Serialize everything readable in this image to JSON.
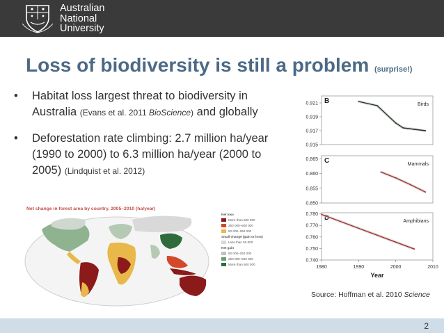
{
  "header": {
    "university_name_lines": [
      "Australian",
      "National",
      "University"
    ]
  },
  "slide": {
    "title": "Loss of biodiversity is still a problem",
    "title_aside": "(surprise!)",
    "bullets": [
      {
        "text": "Habitat loss largest threat to biodiversity in Australia",
        "cite_pre": "(Evans et al. 2011 ",
        "cite_journal": "BioScience",
        "cite_post": ")",
        "tail": " and globally"
      },
      {
        "text": "Deforestation rate climbing: 2.7 million ha/year (1990 to 2000) to 6.3 million ha/year (2000 to 2005)",
        "cite": "(Lindquist et al. 2012)"
      }
    ],
    "map": {
      "title": "Net change in forest area by country, 2005–2010 (ha/year)",
      "legend": {
        "loss_heading": "Net loss",
        "loss_items": [
          "More than 500 000",
          "250 000–500 000",
          "50 000–250 000"
        ],
        "small_heading": "Small change (gain or loss)",
        "small_items": [
          "Less than 50 000"
        ],
        "gain_heading": "Net gain",
        "gain_items": [
          "50 000–250 000",
          "250 000–500 000",
          "More than 500 000"
        ]
      },
      "legend_colors": [
        "#8b1a1a",
        "#d4472a",
        "#e8b84a",
        "#d9d9d9",
        "#b5c9b5",
        "#6f9a76",
        "#2f6b3d"
      ]
    },
    "source": {
      "pre": "Source: Hoffman et al. 2010 ",
      "journal": "Science"
    },
    "page_number": "2"
  },
  "chart_data": [
    {
      "type": "line",
      "panel": "B",
      "series_label": "Birds",
      "ylim": [
        0.915,
        0.922
      ],
      "yticks": [
        "0.921",
        "0.919",
        "0.917",
        "0.915"
      ],
      "xlim": [
        1980,
        2010
      ],
      "x": [
        1990,
        1995,
        2000,
        2002,
        2005,
        2008
      ],
      "values": [
        0.9212,
        0.9206,
        0.9181,
        0.9174,
        0.9172,
        0.917
      ]
    },
    {
      "type": "line",
      "panel": "C",
      "series_label": "Mammals",
      "ylim": [
        0.85,
        0.866
      ],
      "yticks": [
        "0.865",
        "0.860",
        "0.855",
        "0.850"
      ],
      "xlim": [
        1980,
        2010
      ],
      "x": [
        1996,
        2000,
        2004,
        2008
      ],
      "values": [
        0.8605,
        0.8585,
        0.8562,
        0.8537
      ]
    },
    {
      "type": "line",
      "panel": "D",
      "series_label": "Amphibians",
      "ylim": [
        0.74,
        0.781
      ],
      "yticks": [
        "0.780",
        "0.770",
        "0.760",
        "0.750",
        "0.740"
      ],
      "xlim": [
        1980,
        2010
      ],
      "xticks": [
        "1980",
        "1990",
        "2000",
        "2010"
      ],
      "xlabel": "Year",
      "x": [
        1980,
        1985,
        1990,
        1995,
        2000,
        2005
      ],
      "values": [
        0.7795,
        0.7735,
        0.7675,
        0.7615,
        0.7555,
        0.7495
      ]
    }
  ],
  "colors": {
    "header_bg": "#3a3a3a",
    "title": "#4c6a86",
    "footer_bg": "#cfdde9",
    "line_dark": "#2b2b2b",
    "line_red": "#b22a3a"
  }
}
